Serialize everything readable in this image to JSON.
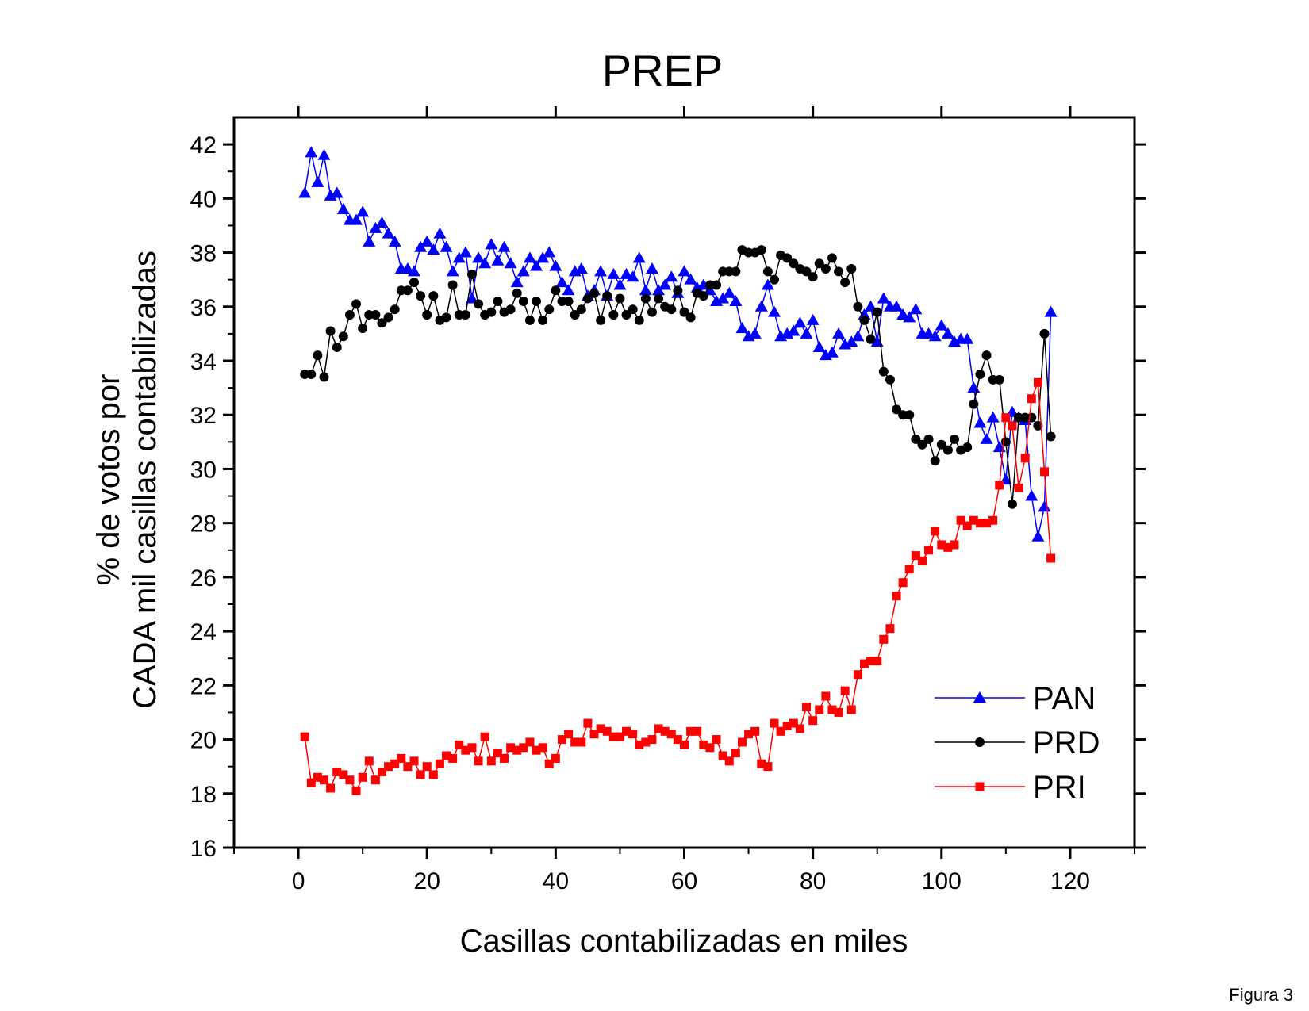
{
  "figure_label": "Figura 3",
  "chart_data": {
    "type": "line",
    "title": "PREP",
    "xlabel": "Casillas contabilizadas en miles",
    "ylabel_lines": [
      "% de votos por",
      "CADA mil casillas contabilizadas"
    ],
    "xlim": [
      -10,
      130
    ],
    "ylim": [
      16,
      43
    ],
    "xticks": [
      0,
      20,
      40,
      60,
      80,
      100,
      120
    ],
    "yticks": [
      16,
      18,
      20,
      22,
      24,
      26,
      28,
      30,
      32,
      34,
      36,
      38,
      40,
      42
    ],
    "grid": false,
    "legend_position": "bottom-right",
    "x_start": 1,
    "x_step": 1,
    "series": [
      {
        "name": "PAN",
        "color": "#0000ff",
        "marker": "triangle",
        "values": [
          40.2,
          41.7,
          40.6,
          41.6,
          40.1,
          40.2,
          39.6,
          39.2,
          39.2,
          39.5,
          38.4,
          38.9,
          39.1,
          38.7,
          38.4,
          37.4,
          37.4,
          37.3,
          38.2,
          38.4,
          38.1,
          38.7,
          38.2,
          37.3,
          37.8,
          38.0,
          36.3,
          37.8,
          37.6,
          38.3,
          37.7,
          38.2,
          37.6,
          36.9,
          37.3,
          37.8,
          37.5,
          37.8,
          38.0,
          37.5,
          36.9,
          36.6,
          37.3,
          37.4,
          36.4,
          36.6,
          37.3,
          36.4,
          37.2,
          36.8,
          37.2,
          37.1,
          37.8,
          36.6,
          37.4,
          36.6,
          36.8,
          37.1,
          36.5,
          37.3,
          37.0,
          36.7,
          36.8,
          36.6,
          36.2,
          36.3,
          36.5,
          36.2,
          35.2,
          34.9,
          35.0,
          36.0,
          36.8,
          35.8,
          34.9,
          35.0,
          35.1,
          35.4,
          35.0,
          35.5,
          34.5,
          34.2,
          34.3,
          35.0,
          34.6,
          34.7,
          34.9,
          35.7,
          36.0,
          34.7,
          36.3,
          36.0,
          36.0,
          35.7,
          35.6,
          35.9,
          35.0,
          35.0,
          34.9,
          35.3,
          35.0,
          34.7,
          34.8,
          34.8,
          33.0,
          31.7,
          31.1,
          31.9,
          30.8,
          29.6,
          32.1,
          31.9,
          31.8,
          29.0,
          27.5,
          28.6,
          35.8
        ]
      },
      {
        "name": "PRD",
        "color": "#000000",
        "marker": "circle",
        "values": [
          33.5,
          33.5,
          34.2,
          33.4,
          35.1,
          34.5,
          34.9,
          35.7,
          36.1,
          35.2,
          35.7,
          35.7,
          35.4,
          35.6,
          35.9,
          36.6,
          36.6,
          36.9,
          36.4,
          35.7,
          36.4,
          35.5,
          35.6,
          36.8,
          35.7,
          35.7,
          37.2,
          36.1,
          35.7,
          35.8,
          36.2,
          35.8,
          35.9,
          36.5,
          36.2,
          35.5,
          36.2,
          35.5,
          35.9,
          36.6,
          36.2,
          36.2,
          35.7,
          35.9,
          36.3,
          36.5,
          35.5,
          36.4,
          35.7,
          36.3,
          35.7,
          35.9,
          35.5,
          36.3,
          35.8,
          36.3,
          36.0,
          35.9,
          36.6,
          35.8,
          35.6,
          36.5,
          36.4,
          36.8,
          36.8,
          37.3,
          37.3,
          37.3,
          38.1,
          38.0,
          38.0,
          38.1,
          37.3,
          37.0,
          37.9,
          37.8,
          37.6,
          37.4,
          37.3,
          37.1,
          37.6,
          37.4,
          37.8,
          37.3,
          36.9,
          37.4,
          36.0,
          35.5,
          34.8,
          35.8,
          33.6,
          33.3,
          32.2,
          32.0,
          32.0,
          31.1,
          30.9,
          31.1,
          30.3,
          30.9,
          30.7,
          31.1,
          30.7,
          30.8,
          32.4,
          33.5,
          34.2,
          33.3,
          33.3,
          31.0,
          28.7,
          31.9,
          31.9,
          31.9,
          31.6,
          35.0,
          31.2
        ]
      },
      {
        "name": "PRI",
        "color": "#ff0000",
        "marker": "square",
        "values": [
          20.1,
          18.4,
          18.6,
          18.5,
          18.2,
          18.8,
          18.7,
          18.5,
          18.1,
          18.6,
          19.2,
          18.5,
          18.8,
          19.0,
          19.1,
          19.3,
          19.0,
          19.2,
          18.7,
          19.0,
          18.7,
          19.1,
          19.4,
          19.3,
          19.8,
          19.6,
          19.7,
          19.2,
          20.1,
          19.2,
          19.5,
          19.3,
          19.7,
          19.6,
          19.7,
          19.9,
          19.6,
          19.7,
          19.1,
          19.3,
          20.0,
          20.2,
          19.9,
          19.9,
          20.6,
          20.2,
          20.4,
          20.3,
          20.1,
          20.1,
          20.3,
          20.2,
          19.8,
          19.9,
          20.0,
          20.4,
          20.3,
          20.2,
          20.0,
          19.8,
          20.3,
          20.3,
          19.8,
          19.7,
          20.0,
          19.4,
          19.2,
          19.5,
          19.9,
          20.2,
          20.3,
          19.1,
          19.0,
          20.6,
          20.3,
          20.5,
          20.6,
          20.4,
          21.2,
          20.7,
          21.1,
          21.6,
          21.1,
          21.0,
          21.8,
          21.1,
          22.4,
          22.8,
          22.9,
          22.9,
          23.7,
          24.1,
          25.3,
          25.8,
          26.3,
          26.8,
          26.6,
          27.0,
          27.7,
          27.2,
          27.1,
          27.2,
          28.1,
          27.9,
          28.1,
          28.0,
          28.0,
          28.1,
          29.4,
          31.9,
          31.6,
          29.3,
          30.4,
          32.6,
          33.2,
          29.9,
          26.7
        ]
      }
    ]
  }
}
